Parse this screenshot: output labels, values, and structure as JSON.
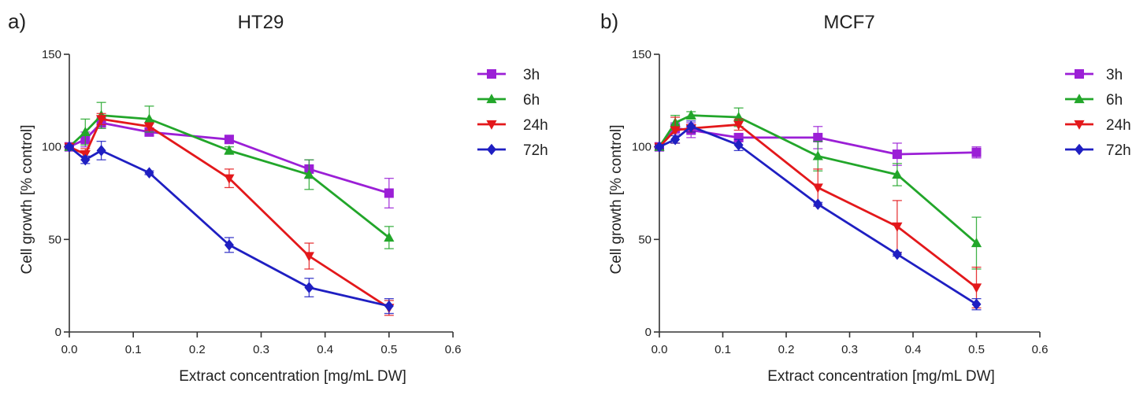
{
  "chart_data": [
    {
      "type": "line",
      "panel_label": "a)",
      "title": "HT29",
      "xlabel": "Extract concentration [mg/mL DW]",
      "ylabel": "Cell growth [% control]",
      "xlim": [
        0,
        0.6
      ],
      "ylim": [
        0,
        150
      ],
      "xticks": [
        "0.0",
        "0.1",
        "0.2",
        "0.3",
        "0.4",
        "0.5",
        "0.6"
      ],
      "yticks": [
        "0",
        "50",
        "100",
        "150"
      ],
      "grid": false,
      "legend_position": "right",
      "x": [
        0,
        0.025,
        0.05,
        0.125,
        0.25,
        0.375,
        0.5
      ],
      "series": [
        {
          "name": "3h",
          "color": "#9b1fd6",
          "marker": "square",
          "values": [
            100,
            104,
            113,
            108,
            104,
            88,
            75
          ],
          "errors": [
            1,
            4,
            3,
            2,
            2,
            5,
            8
          ]
        },
        {
          "name": "6h",
          "color": "#22a62a",
          "marker": "triangle-up",
          "values": [
            100,
            108,
            117,
            115,
            98,
            85,
            51
          ],
          "errors": [
            1,
            7,
            7,
            7,
            2,
            8,
            6
          ]
        },
        {
          "name": "24h",
          "color": "#e3181b",
          "marker": "triangle-down",
          "values": [
            100,
            96,
            115,
            111,
            83,
            41,
            13
          ],
          "errors": [
            1,
            3,
            3,
            2,
            5,
            7,
            4
          ]
        },
        {
          "name": "72h",
          "color": "#1f1fc2",
          "marker": "diamond",
          "values": [
            100,
            93,
            98,
            86,
            47,
            24,
            14
          ],
          "errors": [
            1,
            2,
            5,
            1,
            4,
            5,
            4
          ]
        }
      ]
    },
    {
      "type": "line",
      "panel_label": "b)",
      "title": "MCF7",
      "xlabel": "Extract concentration [mg/mL DW]",
      "ylabel": "Cell growth [% control]",
      "xlim": [
        0,
        0.6
      ],
      "ylim": [
        0,
        150
      ],
      "xticks": [
        "0.0",
        "0.1",
        "0.2",
        "0.3",
        "0.4",
        "0.5",
        "0.6"
      ],
      "yticks": [
        "0",
        "50",
        "100",
        "150"
      ],
      "grid": false,
      "legend_position": "right",
      "x": [
        0,
        0.025,
        0.05,
        0.125,
        0.25,
        0.375,
        0.5
      ],
      "series": [
        {
          "name": "3h",
          "color": "#9b1fd6",
          "marker": "square",
          "values": [
            100,
            110,
            109,
            105,
            105,
            96,
            97
          ],
          "errors": [
            1,
            3,
            4,
            2,
            6,
            6,
            3
          ]
        },
        {
          "name": "6h",
          "color": "#22a62a",
          "marker": "triangle-up",
          "values": [
            100,
            113,
            117,
            116,
            95,
            85,
            48
          ],
          "errors": [
            1,
            4,
            2,
            5,
            8,
            6,
            14
          ]
        },
        {
          "name": "24h",
          "color": "#e3181b",
          "marker": "triangle-down",
          "values": [
            100,
            109,
            110,
            112,
            78,
            57,
            24
          ],
          "errors": [
            1,
            7,
            2,
            3,
            10,
            14,
            11
          ]
        },
        {
          "name": "72h",
          "color": "#1f1fc2",
          "marker": "diamond",
          "values": [
            100,
            104,
            111,
            101,
            69,
            42,
            15
          ],
          "errors": [
            1,
            2,
            3,
            3,
            1,
            1,
            3
          ]
        }
      ]
    }
  ]
}
